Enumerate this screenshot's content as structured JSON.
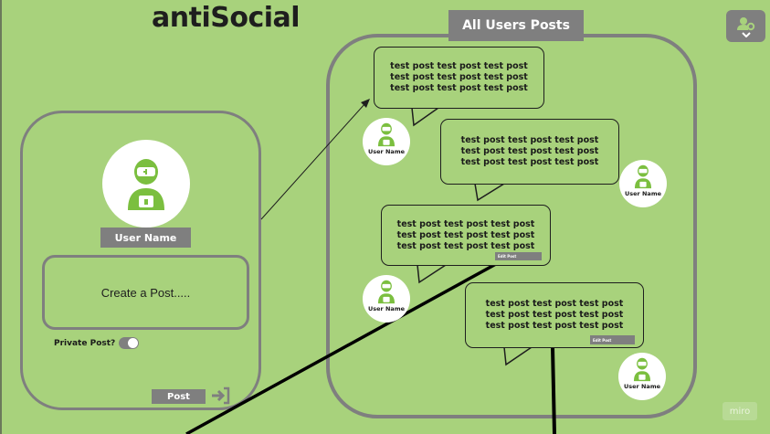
{
  "app": {
    "logo": "antiSocial"
  },
  "header": {
    "settings_icon": "user-gear-icon"
  },
  "profile": {
    "avatar_icon": "robot-avatar-icon",
    "username": "User Name",
    "create_post_placeholder": "Create a Post.....",
    "private_label": "Private Post?",
    "private_toggle_on": true,
    "post_button": "Post",
    "submit_icon": "sign-in-icon"
  },
  "feed": {
    "title": "All Users Posts",
    "posts": [
      {
        "lines": [
          "test post test post test post",
          "test post test post test post",
          "test post test post test post"
        ],
        "author": "User Name",
        "edit_label": ""
      },
      {
        "lines": [
          "test post test post test post",
          "test post test post test post",
          "test post test post test post"
        ],
        "author": "User Name",
        "edit_label": ""
      },
      {
        "lines": [
          "test post test post test post",
          "test post test post test post",
          "test post test post test post"
        ],
        "author": "User Name",
        "edit_label": "Edit Post"
      },
      {
        "lines": [
          "test post test post test post",
          "test post test post test post",
          "test post test post test post"
        ],
        "author": "User Name",
        "edit_label": "Edit Post"
      }
    ]
  },
  "watermark": "miro",
  "colors": {
    "background": "#a8d27c",
    "frame_gray": "#7f7f7f",
    "accent_green": "#7bbf3f",
    "ink": "#1e1e1e"
  }
}
